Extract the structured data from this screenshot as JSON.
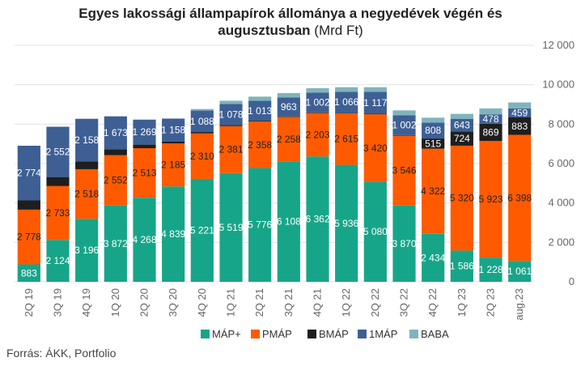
{
  "title": {
    "line1": "Egyes lakossági állampapírok állománya a negyedévek végén és",
    "line2_bold": "augusztusban",
    "line2_unit": " (Mrd Ft)"
  },
  "source": "Forrás: ÁKK, Portfolio",
  "chart_data": {
    "type": "bar",
    "stacked": true,
    "categories": [
      "2Q 19",
      "3Q 19",
      "4Q 19",
      "1Q 20",
      "2Q 20",
      "3Q 20",
      "4Q 20",
      "1Q 21",
      "2Q 21",
      "3Q 21",
      "4Q 21",
      "1Q 22",
      "2Q 22",
      "3Q 22",
      "4Q 22",
      "1Q 23",
      "2Q 23",
      "aug.23"
    ],
    "series": [
      {
        "name": "MÁP+",
        "color": "#17a589",
        "label_color": "#ffffff",
        "values": [
          883,
          2124,
          3196,
          3872,
          4268,
          4839,
          5221,
          5519,
          5776,
          6108,
          6362,
          5936,
          5080,
          3870,
          2434,
          1586,
          1228,
          1061
        ],
        "labels": [
          "883",
          "2 124",
          "3 196",
          "3 872",
          "4 268",
          "4 839",
          "5 221",
          "5 519",
          "5 776",
          "6 108",
          "6 362",
          "5 936",
          "5 080",
          "3 870",
          "2 434",
          "1 586",
          "1 228",
          "1 061"
        ]
      },
      {
        "name": "PMÁP",
        "color": "#ff5a00",
        "label_color": "#222222",
        "values": [
          2778,
          2733,
          2518,
          2552,
          2513,
          2185,
          2310,
          2381,
          2358,
          2258,
          2203,
          2615,
          3420,
          3546,
          4322,
          5320,
          5923,
          6398
        ],
        "labels": [
          "2 778",
          "2 733",
          "2 518",
          "2 552",
          "2 513",
          "2 185",
          "2 310",
          "2 381",
          "2 358",
          "2 258",
          "2 203",
          "2 615",
          "3 420",
          "3 546",
          "4 322",
          "5 320",
          "5 923",
          "6 398"
        ]
      },
      {
        "name": "BMÁP",
        "color": "#1e1e1e",
        "label_color": "#ffffff",
        "values": [
          470,
          460,
          400,
          300,
          180,
          100,
          70,
          50,
          40,
          30,
          30,
          30,
          30,
          30,
          515,
          724,
          869,
          883
        ],
        "labels": [
          "",
          "",
          "",
          "",
          "",
          "",
          "",
          "",
          "",
          "",
          "",
          "",
          "",
          "",
          "515",
          "724",
          "869",
          "883"
        ]
      },
      {
        "name": "1MÁP",
        "color": "#3d5f94",
        "label_color": "#ffffff",
        "values": [
          2774,
          2552,
          2158,
          1673,
          1269,
          1158,
          1088,
          1078,
          1013,
          963,
          1002,
          1066,
          1117,
          1002,
          808,
          643,
          478,
          459
        ],
        "labels": [
          "2 774",
          "2 552",
          "2 158",
          "1 673",
          "1 269",
          "1 158",
          "1 088",
          "1 078",
          "1 013",
          "963",
          "1 002",
          "1 066",
          "1 117",
          "1 002",
          "808",
          "643",
          "478",
          "459"
        ]
      },
      {
        "name": "BABA",
        "color": "#7fb4bd",
        "label_color": "#222222",
        "values": [
          0,
          0,
          0,
          0,
          0,
          0,
          80,
          160,
          210,
          220,
          230,
          230,
          230,
          250,
          250,
          250,
          300,
          300
        ],
        "labels": [
          "",
          "",
          "",
          "",
          "",
          "",
          "",
          "",
          "",
          "",
          "",
          "",
          "",
          "",
          "",
          "",
          "",
          ""
        ]
      }
    ],
    "yaxis": {
      "min": 0,
      "max": 12000,
      "ticks": [
        0,
        2000,
        4000,
        6000,
        8000,
        10000,
        12000
      ],
      "tick_labels": [
        "0",
        "2 000",
        "4 000",
        "6 000",
        "8 000",
        "10 000",
        "12 000"
      ],
      "position": "right"
    },
    "grid": true,
    "legend": {
      "placement": "bottom",
      "items": [
        "MÁP+",
        "PMÁP",
        "BMÁP",
        "1MÁP",
        "BABA"
      ]
    }
  }
}
